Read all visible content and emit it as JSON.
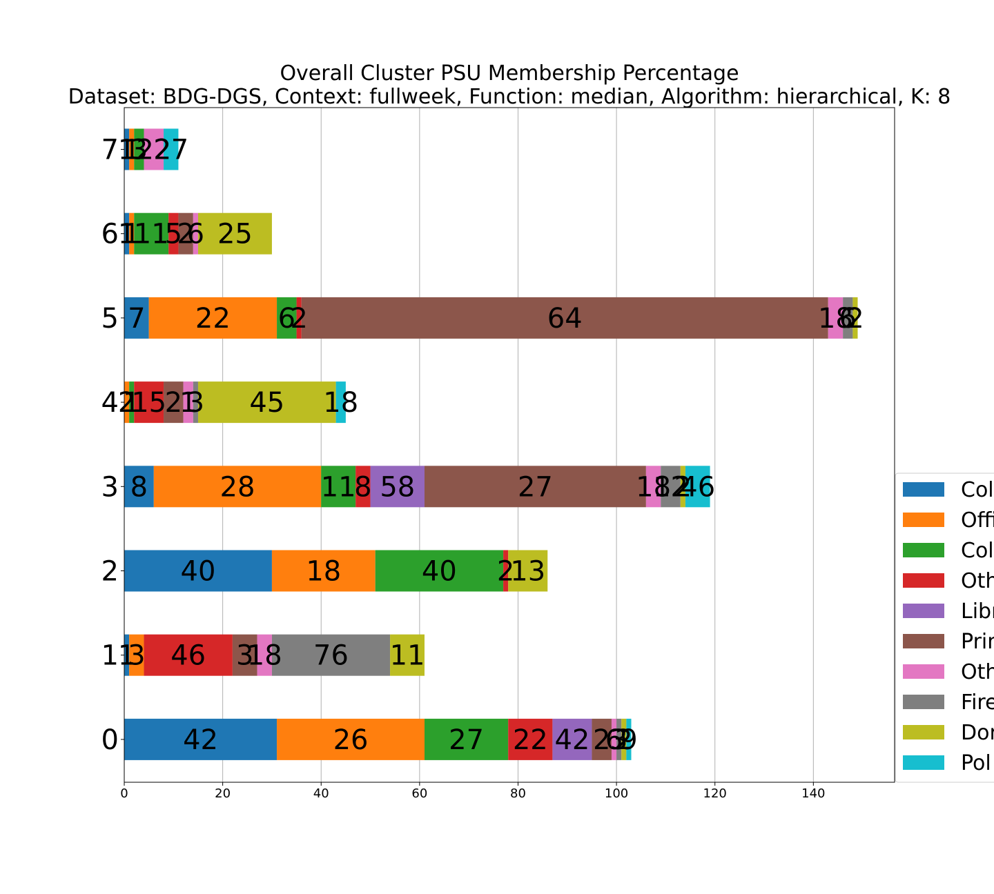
{
  "chart_data": {
    "type": "bar",
    "orientation": "horizontal",
    "stacked": true,
    "title": "Overall Cluster  PSU Membership Percentage",
    "subtitle": "Dataset: BDG-DGS, Context: fullweek, Function: median, Algorithm: hierarchical, K: 8",
    "xlabel": "",
    "ylabel": "",
    "xlim": [
      0,
      156.5
    ],
    "xticks": [
      0,
      20,
      40,
      60,
      80,
      100,
      120,
      140
    ],
    "grid": "x",
    "legend_position": "right (clipped)",
    "categories": [
      "0",
      "1",
      "2",
      "3",
      "4",
      "5",
      "6",
      "7"
    ],
    "series": [
      {
        "name": "Col",
        "color": "#1f77b4",
        "values": [
          31,
          1,
          30,
          6,
          0,
          5,
          1,
          1
        ],
        "labels": [
          "42",
          "1",
          "40",
          "8",
          "",
          "7",
          "1",
          "1"
        ]
      },
      {
        "name": "Offi",
        "color": "#ff7f0e",
        "values": [
          30,
          3,
          21,
          34,
          1,
          26,
          1,
          1
        ],
        "labels": [
          "26",
          "3",
          "18",
          "28",
          "2",
          "22",
          "1",
          "1"
        ]
      },
      {
        "name": "Col",
        "color": "#2ca02c",
        "values": [
          17,
          0,
          26,
          7,
          1,
          4,
          7,
          2
        ],
        "labels": [
          "27",
          "",
          "40",
          "11",
          "1",
          "6",
          "11",
          "3"
        ]
      },
      {
        "name": "Oth",
        "color": "#d62728",
        "values": [
          9,
          18,
          1,
          3,
          6,
          1,
          2,
          0
        ],
        "labels": [
          "22",
          "46",
          "2",
          "8",
          "15",
          "2",
          "5",
          ""
        ]
      },
      {
        "name": "Libr",
        "color": "#9467bd",
        "values": [
          8,
          0,
          0,
          11,
          0,
          0,
          0,
          0
        ],
        "labels": [
          "42",
          "",
          "",
          "58",
          "",
          "",
          "",
          ""
        ]
      },
      {
        "name": "Prim",
        "color": "#8c564b",
        "values": [
          4,
          5,
          0,
          45,
          4,
          107,
          3,
          0
        ],
        "labels": [
          "2",
          "3",
          "",
          "27",
          "2",
          "64",
          "2",
          ""
        ]
      },
      {
        "name": "Oth",
        "color": "#e377c2",
        "values": [
          1,
          3,
          0,
          3,
          2,
          3,
          1,
          4
        ],
        "labels": [
          "6",
          "18",
          "",
          "18",
          "1",
          "18",
          "6",
          "22"
        ]
      },
      {
        "name": "Fire",
        "color": "#7f7f7f",
        "values": [
          1,
          24,
          0,
          4,
          1,
          2,
          0,
          0
        ],
        "labels": [
          "3",
          "76",
          "",
          "12",
          "3",
          "6",
          "",
          ""
        ]
      },
      {
        "name": "Dor",
        "color": "#bcbd22",
        "values": [
          1,
          7,
          8,
          1,
          28,
          1,
          15,
          0
        ],
        "labels": [
          "2",
          "11",
          "13",
          "2",
          "45",
          "2",
          "25",
          ""
        ]
      },
      {
        "name": "Pol",
        "color": "#17becf",
        "values": [
          1,
          0,
          0,
          5,
          2,
          0,
          0,
          3
        ],
        "labels": [
          "9",
          "",
          "",
          "46",
          "18",
          "",
          "",
          "27"
        ]
      }
    ]
  }
}
